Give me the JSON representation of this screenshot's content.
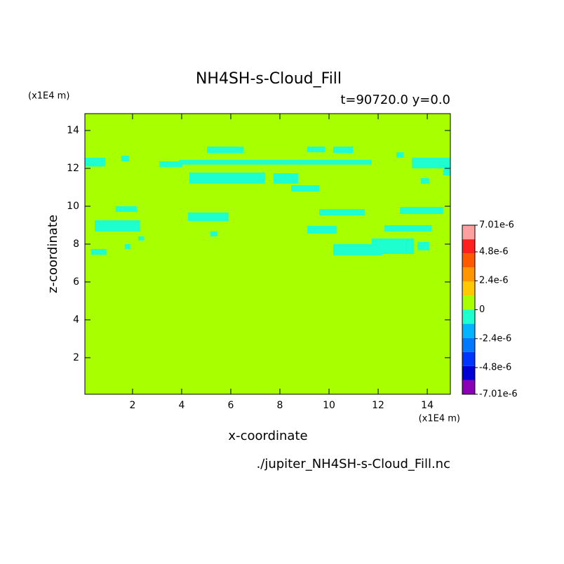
{
  "chart_data": {
    "type": "contour",
    "title": "NH4SH-s-Cloud_Fill",
    "subtitle": "t=90720.0 y=0.0",
    "x_label": "x-coordinate",
    "y_label": "z-coordinate",
    "x_unit": "(x1E4 m)",
    "y_unit": "(x1E4 m)",
    "source": "./jupiter_NH4SH-s-Cloud_Fill.nc",
    "xlim": [
      0.06,
      14.94
    ],
    "ylim": [
      0.07,
      14.89
    ],
    "xticks": [
      2,
      4,
      6,
      8,
      10,
      12,
      14
    ],
    "yticks": [
      2,
      4,
      6,
      8,
      10,
      12,
      14
    ],
    "background_color": "#a8ff00",
    "region_color": "#1effcf",
    "regions": [
      {
        "x": [
          0.06,
          0.89
        ],
        "z": [
          12.1,
          12.56
        ]
      },
      {
        "x": [
          1.54,
          1.86
        ],
        "z": [
          12.37,
          12.67
        ]
      },
      {
        "x": [
          3.09,
          4.03
        ],
        "z": [
          12.07,
          12.37
        ]
      },
      {
        "x": [
          3.89,
          11.74
        ],
        "z": [
          12.2,
          12.45
        ]
      },
      {
        "x": [
          5.03,
          6.51
        ],
        "z": [
          12.81,
          13.15
        ]
      },
      {
        "x": [
          9.11,
          9.83
        ],
        "z": [
          12.85,
          13.15
        ]
      },
      {
        "x": [
          10.17,
          10.97
        ],
        "z": [
          12.81,
          13.15
        ]
      },
      {
        "x": [
          12.74,
          13.03
        ],
        "z": [
          12.56,
          12.85
        ]
      },
      {
        "x": [
          13.37,
          14.94
        ],
        "z": [
          12.0,
          12.56
        ]
      },
      {
        "x": [
          4.31,
          7.4
        ],
        "z": [
          11.19,
          11.78
        ]
      },
      {
        "x": [
          7.74,
          8.74
        ],
        "z": [
          11.19,
          11.74
        ]
      },
      {
        "x": [
          8.46,
          9.6
        ],
        "z": [
          10.78,
          11.11
        ]
      },
      {
        "x": [
          13.74,
          14.09
        ],
        "z": [
          11.19,
          11.48
        ]
      },
      {
        "x": [
          14.66,
          14.94
        ],
        "z": [
          11.63,
          12.0
        ]
      },
      {
        "x": [
          1.31,
          2.17
        ],
        "z": [
          9.7,
          10.0
        ]
      },
      {
        "x": [
          0.46,
          2.31
        ],
        "z": [
          8.67,
          9.26
        ]
      },
      {
        "x": [
          4.26,
          5.91
        ],
        "z": [
          9.22,
          9.67
        ]
      },
      {
        "x": [
          5.17,
          5.46
        ],
        "z": [
          8.41,
          8.67
        ]
      },
      {
        "x": [
          0.31,
          0.94
        ],
        "z": [
          7.44,
          7.74
        ]
      },
      {
        "x": [
          1.69,
          1.91
        ],
        "z": [
          7.74,
          8.0
        ]
      },
      {
        "x": [
          2.23,
          2.46
        ],
        "z": [
          8.19,
          8.41
        ]
      },
      {
        "x": [
          9.6,
          11.46
        ],
        "z": [
          9.52,
          9.85
        ]
      },
      {
        "x": [
          9.11,
          10.31
        ],
        "z": [
          8.56,
          8.96
        ]
      },
      {
        "x": [
          10.17,
          12.17
        ],
        "z": [
          7.41,
          8.0
        ]
      },
      {
        "x": [
          11.74,
          13.46
        ],
        "z": [
          7.48,
          8.3
        ]
      },
      {
        "x": [
          12.26,
          14.17
        ],
        "z": [
          8.67,
          9.0
        ]
      },
      {
        "x": [
          12.89,
          14.66
        ],
        "z": [
          9.59,
          9.96
        ]
      },
      {
        "x": [
          13.6,
          14.09
        ],
        "z": [
          7.67,
          8.11
        ]
      }
    ],
    "colorbar": {
      "lim": [
        -7.01e-06,
        7.01e-06
      ],
      "colors": [
        "#8a00b4",
        "#0000d2",
        "#0034ff",
        "#0078ff",
        "#00b4ff",
        "#1effcf",
        "#a8ff00",
        "#ffc800",
        "#ff9600",
        "#ff5a00",
        "#ff2020",
        "#ffa0a0"
      ],
      "ticks": [
        {
          "value": 7.01e-06,
          "label": "7.01e-6"
        },
        {
          "value": 4.8e-06,
          "label": "4.8e-6"
        },
        {
          "value": 2.4e-06,
          "label": "2.4e-6"
        },
        0,
        {
          "value": -2.4e-06,
          "label": "-2.4e-6"
        },
        {
          "value": -4.8e-06,
          "label": "-4.8e-6"
        },
        {
          "value": -7.01e-06,
          "label": "-7.01e-6"
        }
      ]
    }
  }
}
